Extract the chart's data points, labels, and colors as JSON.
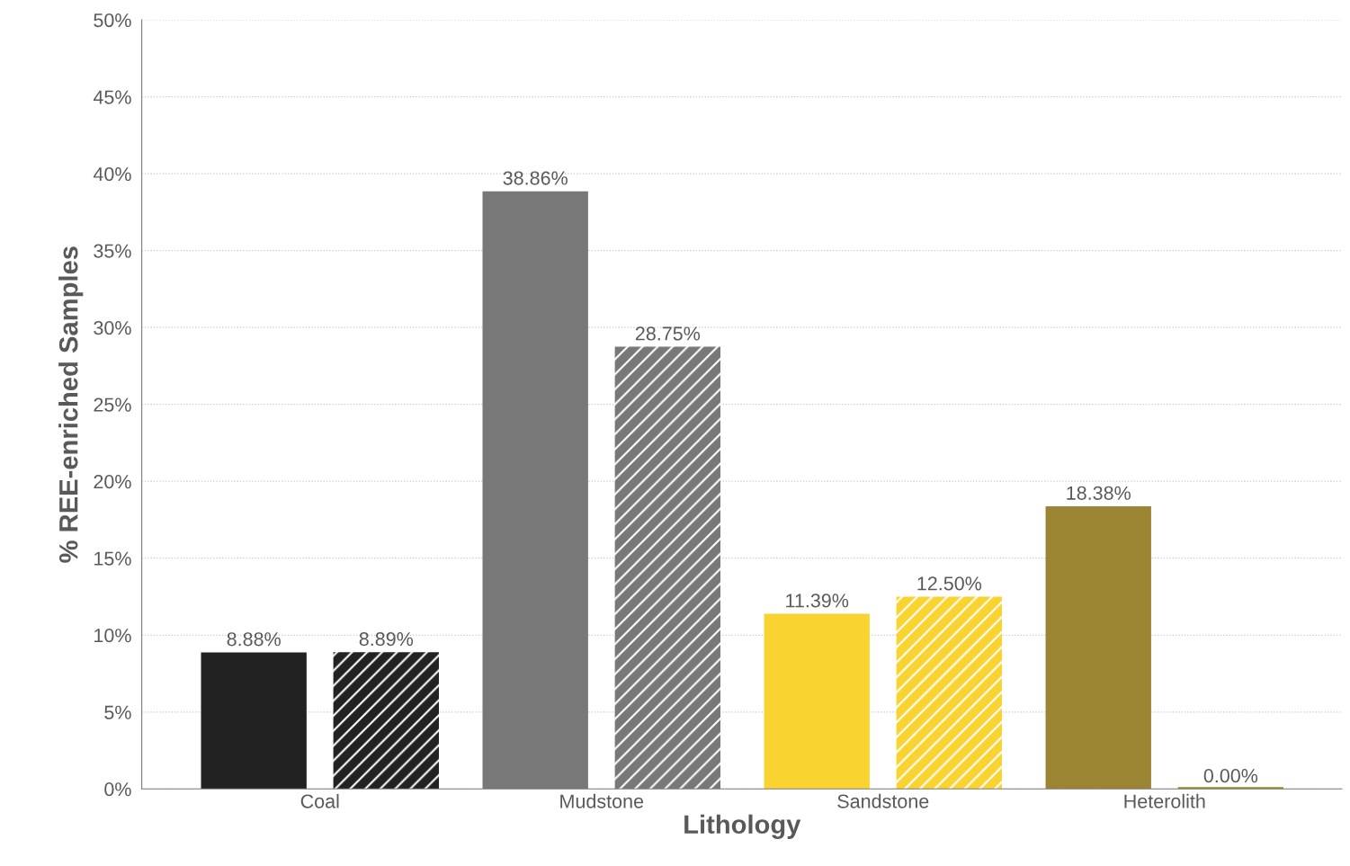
{
  "chart_data": {
    "type": "bar",
    "xlabel": "Lithology",
    "ylabel": "% REE-enriched Samples",
    "categories": [
      "Coal",
      "Mudstone",
      "Sandstone",
      "Heterolith"
    ],
    "series": [
      {
        "colors": [
          "#222222",
          "#787878",
          "#f9d431",
          "#9c8532"
        ],
        "values": [
          8.88,
          38.86,
          11.39,
          18.38
        ],
        "value_labels": [
          "8.88%",
          "38.86%",
          "11.39%",
          "18.38%"
        ]
      },
      {
        "colors": [
          "#222222",
          "#787878",
          "#f9d431",
          "#9c8532"
        ],
        "values": [
          8.89,
          28.75,
          12.5,
          0.0
        ],
        "value_labels": [
          "8.89%",
          "28.75%",
          "12.50%",
          "0.00%"
        ]
      }
    ],
    "ylim": [
      0,
      50
    ],
    "yticks": [
      {
        "value": 0,
        "label": "0%"
      },
      {
        "value": 5,
        "label": "5%"
      },
      {
        "value": 10,
        "label": "10%"
      },
      {
        "value": 15,
        "label": "15%"
      },
      {
        "value": 20,
        "label": "20%"
      },
      {
        "value": 25,
        "label": "25%"
      },
      {
        "value": 30,
        "label": "30%"
      },
      {
        "value": 35,
        "label": "35%"
      },
      {
        "value": 40,
        "label": "40%"
      },
      {
        "value": 45,
        "label": "45%"
      },
      {
        "value": 50,
        "label": "50%"
      }
    ],
    "grid": "y",
    "legend": false
  }
}
